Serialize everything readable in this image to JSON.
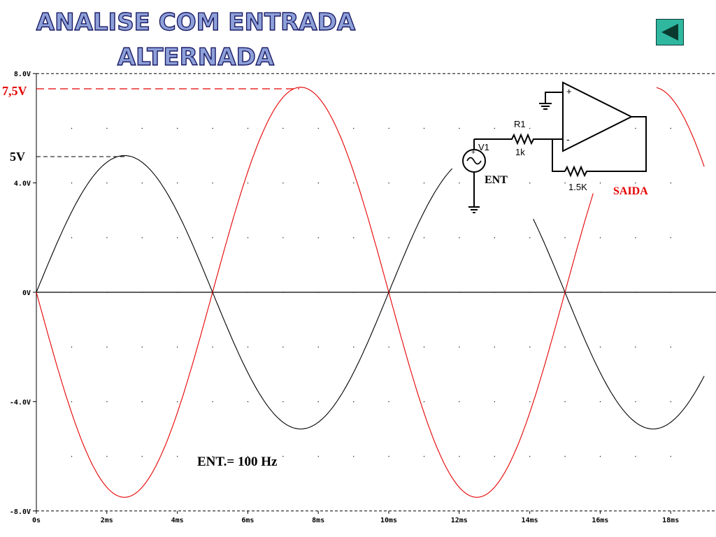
{
  "title": {
    "line1": "ANALISE COM ENTRADA",
    "line2": "ALTERNADA"
  },
  "nav": {
    "icon": "back-arrow-icon"
  },
  "annotations": {
    "peak_out": "7,5V",
    "peak_in": "5V",
    "freq": "ENT.= 100 Hz"
  },
  "circuit": {
    "v1": "V1",
    "r1_name": "R1",
    "r1_value": "1k",
    "rf_value": "1.5K",
    "ent": "ENT",
    "saida": "SAIDA",
    "plus": "+",
    "minus": "-"
  },
  "colors": {
    "input": "#000000",
    "output": "#e60000",
    "accent": "#2fb7a0"
  },
  "chart_data": {
    "type": "line",
    "x": {
      "unit": "ms",
      "range": [
        0,
        18.8
      ],
      "ticks": [
        0,
        2,
        4,
        6,
        8,
        10,
        12,
        14,
        16,
        18
      ],
      "tick_labels": [
        "0s",
        "2ms",
        "4ms",
        "6ms",
        "8ms",
        "10ms",
        "12ms",
        "14ms",
        "16ms",
        "18ms"
      ]
    },
    "y": {
      "unit": "V",
      "range": [
        -8,
        8
      ],
      "ticks": [
        8,
        4,
        0,
        -4,
        -8
      ],
      "tick_labels": [
        "8.0V",
        "4.0V",
        "0V",
        "-4.0V",
        "-8.0V"
      ]
    },
    "grid": "dotted",
    "series": [
      {
        "color": "#000000",
        "amplitude": 5,
        "frequency_hz": 100,
        "phase": "in-phase"
      },
      {
        "color": "#e60000",
        "amplitude": 7.5,
        "frequency_hz": 100,
        "phase": "inverted"
      }
    ]
  }
}
